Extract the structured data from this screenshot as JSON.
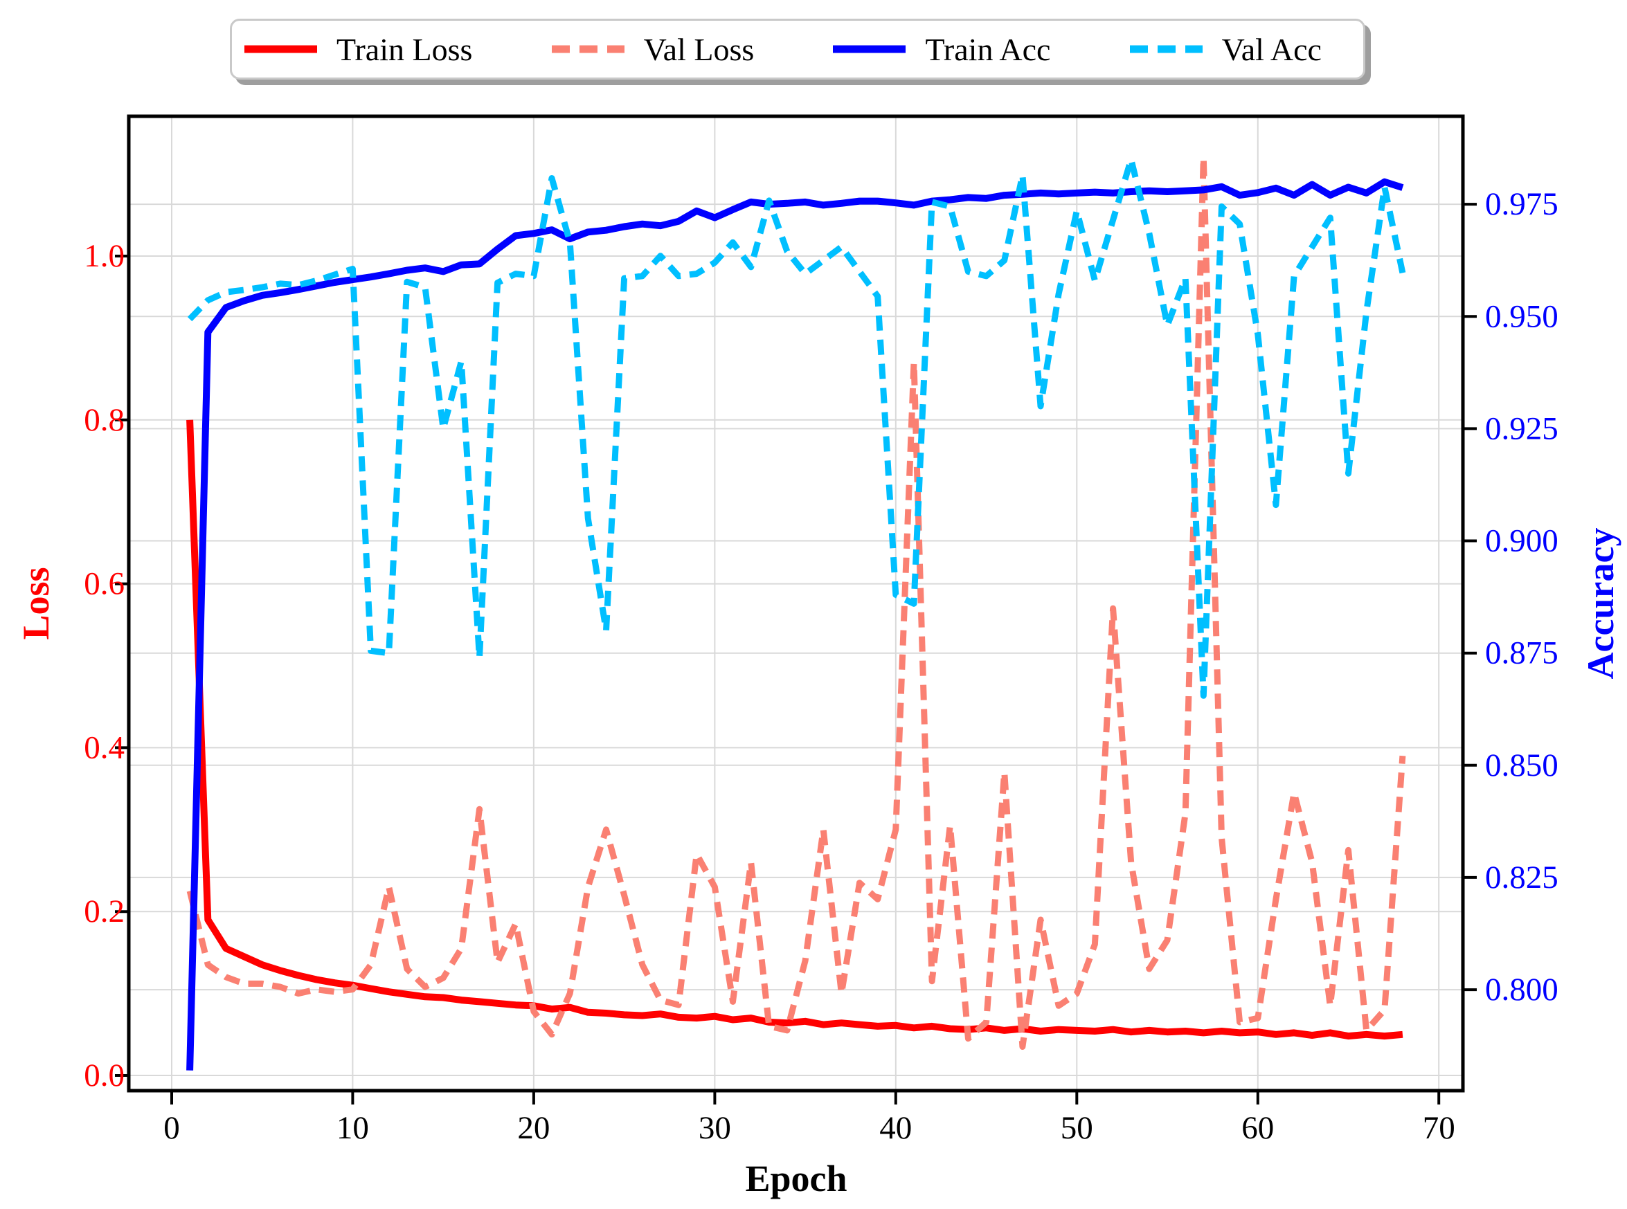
{
  "chart_data": {
    "type": "line",
    "title": "",
    "xlabel": "Epoch",
    "ylabel_left": "Loss",
    "ylabel_right": "Accuracy",
    "grid": true,
    "legend_position": "top",
    "x_epoch_start": 1,
    "xlim": [
      -2.37,
      71.33
    ],
    "ylim_left": [
      -0.0186,
      1.1706
    ],
    "ylim_right": [
      0.7775,
      0.9946
    ],
    "x_ticks": [
      0,
      10,
      20,
      30,
      40,
      50,
      60,
      70
    ],
    "x_tick_labels": [
      "0",
      "10",
      "20",
      "30",
      "40",
      "50",
      "60",
      "70"
    ],
    "left_ticks": [
      0.0,
      0.2,
      0.4,
      0.6,
      0.8,
      1.0
    ],
    "left_tick_labels": [
      "0.0",
      "0.2",
      "0.4",
      "0.6",
      "0.8",
      "1.0"
    ],
    "right_ticks": [
      0.8,
      0.825,
      0.85,
      0.875,
      0.9,
      0.925,
      0.95,
      0.975
    ],
    "right_tick_labels": [
      "0.800",
      "0.825",
      "0.850",
      "0.875",
      "0.900",
      "0.925",
      "0.950",
      "0.975"
    ],
    "colors": {
      "train_loss": "#ff0000",
      "val_loss": "#fa8072",
      "train_acc": "#0000ff",
      "val_acc": "#00bfff",
      "grid": "#d9d9d9",
      "spine": "#000000",
      "left_axis_text": "#ff0000",
      "right_axis_text": "#0000ff",
      "x_axis_text": "#000000"
    },
    "series": [
      {
        "name": "Train Loss",
        "axis": "left",
        "color": "#ff0000",
        "style": "solid",
        "values": [
          0.8,
          0.19,
          0.155,
          0.145,
          0.135,
          0.128,
          0.122,
          0.117,
          0.113,
          0.11,
          0.106,
          0.102,
          0.099,
          0.096,
          0.095,
          0.092,
          0.09,
          0.088,
          0.086,
          0.085,
          0.081,
          0.083,
          0.077,
          0.076,
          0.074,
          0.073,
          0.075,
          0.071,
          0.07,
          0.072,
          0.068,
          0.07,
          0.065,
          0.064,
          0.066,
          0.062,
          0.064,
          0.062,
          0.06,
          0.061,
          0.058,
          0.06,
          0.057,
          0.056,
          0.058,
          0.055,
          0.057,
          0.054,
          0.056,
          0.055,
          0.054,
          0.056,
          0.053,
          0.055,
          0.053,
          0.054,
          0.052,
          0.054,
          0.052,
          0.053,
          0.05,
          0.052,
          0.049,
          0.052,
          0.048,
          0.05,
          0.048,
          0.05
        ]
      },
      {
        "name": "Val Loss",
        "axis": "left",
        "color": "#fa8072",
        "style": "dashed",
        "values": [
          0.225,
          0.135,
          0.12,
          0.112,
          0.112,
          0.108,
          0.1,
          0.105,
          0.102,
          0.105,
          0.135,
          0.23,
          0.13,
          0.108,
          0.119,
          0.155,
          0.325,
          0.138,
          0.185,
          0.078,
          0.05,
          0.1,
          0.23,
          0.3,
          0.22,
          0.135,
          0.092,
          0.086,
          0.27,
          0.23,
          0.09,
          0.26,
          0.06,
          0.055,
          0.14,
          0.3,
          0.1,
          0.235,
          0.215,
          0.3,
          0.87,
          0.115,
          0.305,
          0.045,
          0.065,
          0.37,
          0.035,
          0.19,
          0.085,
          0.1,
          0.16,
          0.57,
          0.26,
          0.13,
          0.165,
          0.32,
          1.12,
          0.29,
          0.065,
          0.07,
          0.215,
          0.345,
          0.26,
          0.085,
          0.275,
          0.055,
          0.08,
          0.39
        ]
      },
      {
        "name": "Train Acc",
        "axis": "right",
        "color": "#0000ff",
        "style": "solid",
        "values": [
          0.782,
          0.9465,
          0.952,
          0.9535,
          0.9547,
          0.9553,
          0.956,
          0.9568,
          0.9576,
          0.9582,
          0.9588,
          0.9595,
          0.9603,
          0.9608,
          0.96,
          0.9615,
          0.9617,
          0.965,
          0.968,
          0.9685,
          0.9693,
          0.9673,
          0.9688,
          0.9692,
          0.97,
          0.9706,
          0.9702,
          0.9712,
          0.9735,
          0.972,
          0.9738,
          0.9755,
          0.975,
          0.9752,
          0.9755,
          0.9748,
          0.9752,
          0.9757,
          0.9757,
          0.9753,
          0.9748,
          0.9757,
          0.976,
          0.9765,
          0.9763,
          0.977,
          0.9772,
          0.9775,
          0.9773,
          0.9775,
          0.9777,
          0.9775,
          0.9778,
          0.978,
          0.9778,
          0.978,
          0.9782,
          0.9789,
          0.977,
          0.9776,
          0.9786,
          0.977,
          0.9794,
          0.977,
          0.9788,
          0.9775,
          0.98,
          0.9787
        ]
      },
      {
        "name": "Val Acc",
        "axis": "right",
        "color": "#00bfff",
        "style": "dashed",
        "values": [
          0.9494,
          0.9536,
          0.9554,
          0.9559,
          0.9565,
          0.9573,
          0.957,
          0.958,
          0.9593,
          0.9606,
          0.8755,
          0.875,
          0.9577,
          0.9565,
          0.925,
          0.94,
          0.874,
          0.9575,
          0.9595,
          0.959,
          0.9808,
          0.9665,
          0.905,
          0.88,
          0.9585,
          0.959,
          0.9635,
          0.959,
          0.9595,
          0.962,
          0.9665,
          0.961,
          0.9758,
          0.9645,
          0.9595,
          0.9625,
          0.9655,
          0.96,
          0.9545,
          0.888,
          0.886,
          0.9755,
          0.9745,
          0.96,
          0.959,
          0.9625,
          0.9815,
          0.93,
          0.955,
          0.9735,
          0.958,
          0.9715,
          0.985,
          0.9685,
          0.948,
          0.9585,
          0.8655,
          0.9745,
          0.9706,
          0.946,
          0.908,
          0.959,
          0.9655,
          0.972,
          0.915,
          0.951,
          0.9788,
          0.9597
        ]
      }
    ],
    "layout": {
      "plot": {
        "l": 186,
        "t": 168,
        "r": 2113,
        "b": 1576
      },
      "tick_len": 20,
      "tick_width": 4,
      "spine_width": 5,
      "line_width_solid": 10,
      "line_width_dashed": 9,
      "dash_pattern": "22 13",
      "tick_font": 47,
      "label_font": 54,
      "left_label_x": 180,
      "right_label_x": 2145,
      "x_label_baseline": 1645,
      "xlabel_pos": {
        "x": 1150,
        "y": 1703
      },
      "ylabel_left_pos": {
        "x": 52,
        "y": 872
      },
      "ylabel_right_pos": {
        "x": 2312,
        "y": 872
      }
    }
  },
  "legend": {
    "items": [
      {
        "label": "Train Loss",
        "color": "#ff0000",
        "style": "solid"
      },
      {
        "label": "Val Loss",
        "color": "#fa8072",
        "style": "dashed"
      },
      {
        "label": "Train Acc",
        "color": "#0000ff",
        "style": "solid"
      },
      {
        "label": "Val Acc",
        "color": "#00bfff",
        "style": "dashed"
      }
    ]
  }
}
